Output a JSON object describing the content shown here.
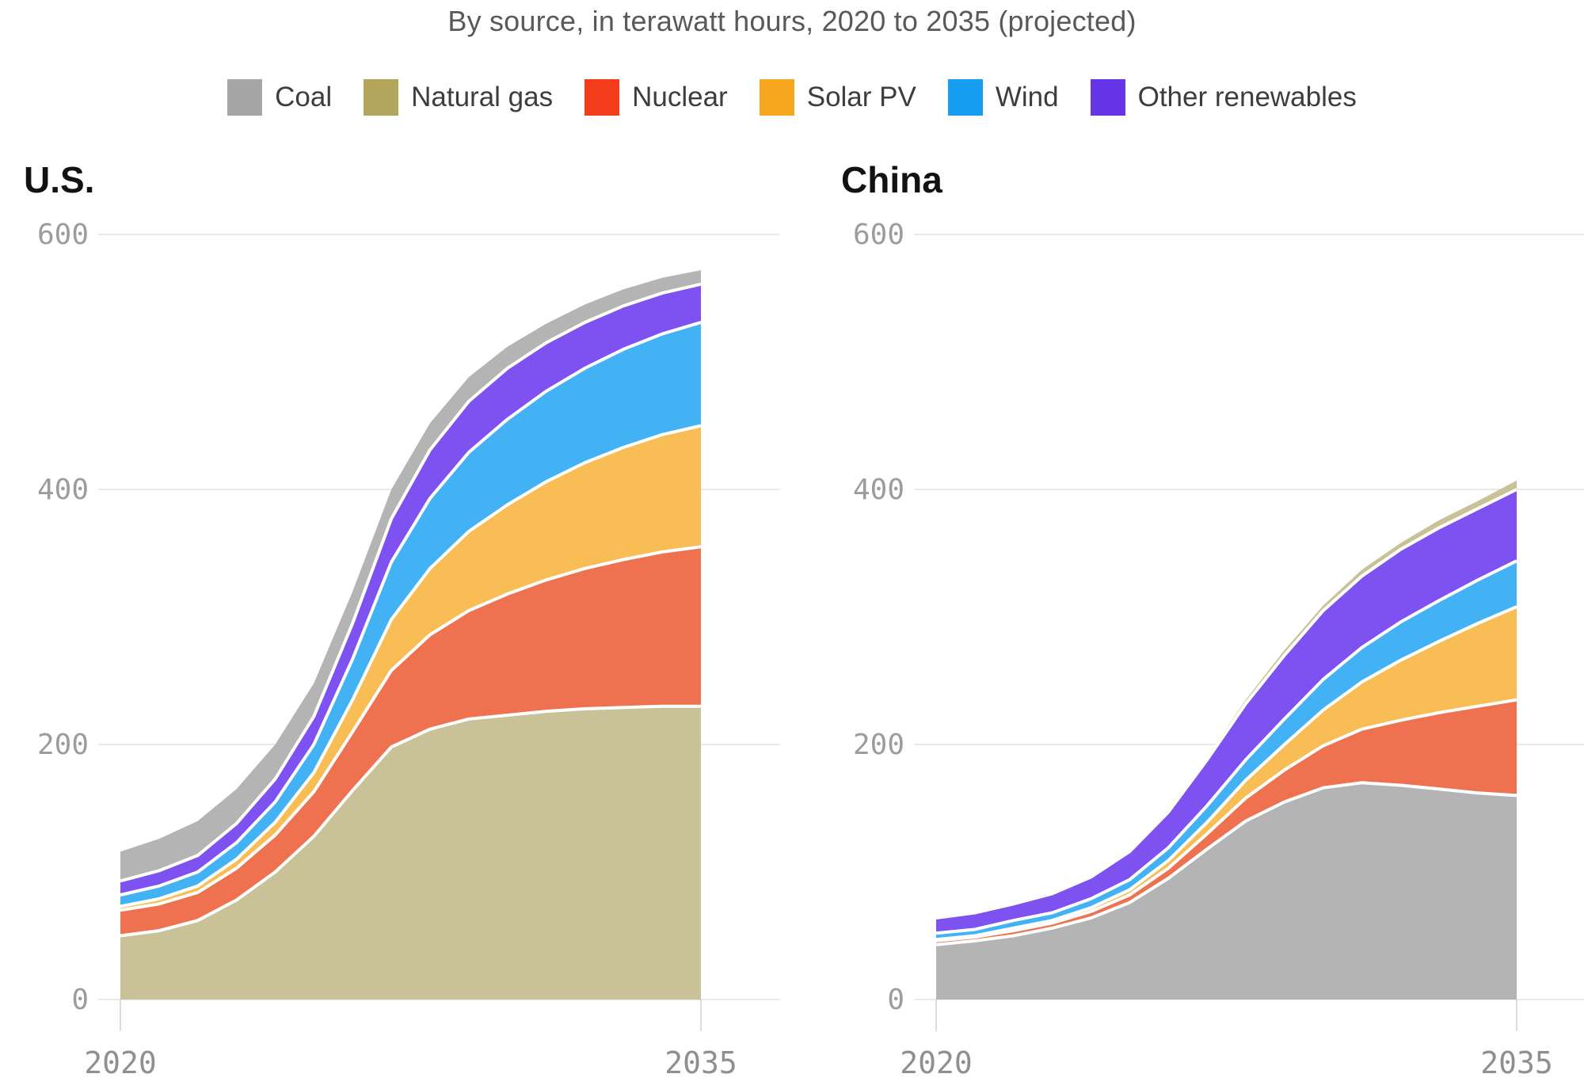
{
  "header": {
    "subtitle": "By source, in terawatt hours, 2020 to 2035 (projected)"
  },
  "legend": {
    "items": [
      {
        "label": "Coal",
        "color": "#a6a6a6"
      },
      {
        "label": "Natural gas",
        "color": "#b3a55c"
      },
      {
        "label": "Nuclear",
        "color": "#f43d1b"
      },
      {
        "label": "Solar PV",
        "color": "#f6a71d"
      },
      {
        "label": "Wind",
        "color": "#169ff2"
      },
      {
        "label": "Other renewables",
        "color": "#6635e8"
      }
    ]
  },
  "chart_data": [
    {
      "type": "area",
      "stacked": true,
      "title": "U.S.",
      "x": [
        2020,
        2021,
        2022,
        2023,
        2024,
        2025,
        2026,
        2027,
        2028,
        2029,
        2030,
        2031,
        2032,
        2033,
        2034,
        2035
      ],
      "x_tick_labels": [
        "2020",
        "2035"
      ],
      "y_ticks": [
        0,
        200,
        400,
        600
      ],
      "ylim": [
        0,
        620
      ],
      "grid": true,
      "series": [
        {
          "name": "Natural gas",
          "color": "#c9c197",
          "values": [
            50,
            54,
            62,
            78,
            100,
            128,
            164,
            198,
            212,
            220,
            223,
            226,
            228,
            229,
            230,
            230
          ]
        },
        {
          "name": "Nuclear",
          "color": "#ee7150",
          "values": [
            20,
            21,
            22,
            25,
            29,
            35,
            46,
            60,
            74,
            85,
            95,
            103,
            110,
            116,
            121,
            125
          ]
        },
        {
          "name": "Solar PV",
          "color": "#f8bd55",
          "values": [
            3,
            4,
            5,
            7,
            10,
            15,
            25,
            40,
            52,
            62,
            70,
            77,
            83,
            88,
            92,
            95
          ]
        },
        {
          "name": "Wind",
          "color": "#42b2f5",
          "values": [
            9,
            10,
            11,
            13,
            16,
            22,
            32,
            45,
            55,
            62,
            67,
            71,
            74,
            77,
            79,
            81
          ]
        },
        {
          "name": "Other renewables",
          "color": "#7e52f0",
          "values": [
            11,
            12,
            13,
            15,
            18,
            22,
            28,
            34,
            38,
            40,
            40,
            38,
            36,
            34,
            32,
            30
          ]
        },
        {
          "name": "Coal",
          "color": "#b4b4b4",
          "values": [
            23,
            25,
            27,
            27,
            27,
            26,
            25,
            23,
            21,
            19,
            17,
            15,
            14,
            13,
            12,
            11
          ]
        }
      ]
    },
    {
      "type": "area",
      "stacked": true,
      "title": "China",
      "x": [
        2020,
        2021,
        2022,
        2023,
        2024,
        2025,
        2026,
        2027,
        2028,
        2029,
        2030,
        2031,
        2032,
        2033,
        2034,
        2035
      ],
      "x_tick_labels": [
        "2020",
        "2035"
      ],
      "y_ticks": [
        0,
        200,
        400,
        600
      ],
      "ylim": [
        0,
        620
      ],
      "grid": true,
      "series": [
        {
          "name": "Coal",
          "color": "#b4b4b4",
          "values": [
            43,
            46,
            50,
            56,
            64,
            76,
            95,
            118,
            140,
            155,
            166,
            170,
            168,
            165,
            162,
            160
          ]
        },
        {
          "name": "Nuclear",
          "color": "#ee7150",
          "values": [
            3,
            3,
            4,
            4,
            5,
            6,
            8,
            12,
            18,
            25,
            33,
            42,
            51,
            60,
            68,
            75
          ]
        },
        {
          "name": "Solar PV",
          "color": "#f8bd55",
          "values": [
            1,
            1,
            2,
            2,
            3,
            4,
            6,
            9,
            14,
            20,
            28,
            37,
            47,
            56,
            65,
            73
          ]
        },
        {
          "name": "Wind",
          "color": "#42b2f5",
          "values": [
            5,
            5,
            6,
            6,
            7,
            8,
            10,
            13,
            16,
            20,
            24,
            27,
            30,
            32,
            34,
            36
          ]
        },
        {
          "name": "Other renewables",
          "color": "#7e52f0",
          "values": [
            12,
            13,
            13,
            15,
            17,
            22,
            28,
            36,
            44,
            50,
            54,
            56,
            57,
            57,
            56,
            56
          ]
        },
        {
          "name": "Natural gas",
          "color": "#c9c197",
          "values": [
            1,
            1,
            1,
            1,
            1,
            1,
            2,
            2,
            3,
            4,
            4,
            5,
            5,
            6,
            6,
            7
          ]
        }
      ]
    }
  ]
}
